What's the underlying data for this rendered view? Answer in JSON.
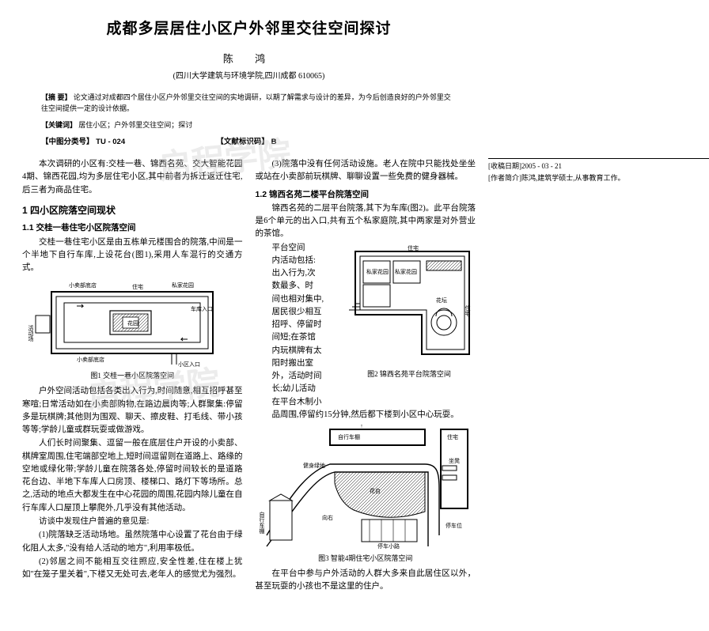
{
  "title": "成都多层居住小区户外邻里交往空间探讨",
  "author": "陈 鸿",
  "affiliation": "(四川大学建筑与环境学院,四川成都 610065)",
  "abstract_label": "【摘 要】",
  "abstract_text": "论文通过对成都四个居住小区户外邻里交往空间的实地调研，以期了解需求与设计的差异，为今后创造良好的户外邻里交往空间提供一定的设计依据。",
  "keywords_label": "【关键词】",
  "keywords_text": "居住小区；户外邻里交往空间；探讨",
  "class_label": "【中图分类号】",
  "class_value": "TU - 024",
  "doc_label": "【文献标识码】",
  "doc_value": "B",
  "intro": "本次调研的小区有:交桂一巷、锦西名苑、交大智能花园4期、锦西花园,均为多层住宅小区,其中前者为拆迁返迁住宅,后三者为商品住宅。",
  "sec1": "1 四小区院落空间现状",
  "sec11": "1.1 交桂一巷住宅小区院落空间",
  "p11a": "交桂一巷住宅小区是由五栋单元楼围合的院落,中间是一个半地下自行车库,上设花台(图1),采用人车混行的交通方式。",
  "fig1_labels": {
    "a": "小卖部底店",
    "b": "住宅",
    "c": "私家花园",
    "d": "车库入口",
    "e": "活动场",
    "f": "花园",
    "g": "小区入口",
    "h": "小卖部底店"
  },
  "cap1": "图1 交桂一巷小区院落空间",
  "p11b": "户外空间活动包括各类出入行为,时间随意,相互招呼甚至寒喧;日常活动如在小卖部购物,在路边晨肉等;人群聚集:停留多是玩棋牌;其他则为围观、聊天、擦皮鞋、打毛线、带小孩等等;学龄儿童或群玩耍或做游戏。",
  "p11c": "人们长时间聚集、逗留一般在底层住户开设的小卖部、棋牌室周围,住宅端部空地上,短时间逗留则在道路上、路缘的空地或绿化带;学龄儿童在院落各处,停留时间较长的是道路花台边、半地下车库人口房顶、楼梯口、路灯下等场所。总之,活动的地点大都发生在中心花园的周围,花园内除儿童在自行车库人口屋顶上攀爬外,几乎没有其他活动。",
  "p11d": "访谈中发现住户普遍的意见是:",
  "p11e": "(1)院落缺乏活动场地。虽然院落中心设置了花台由于绿化阻人太多,\"没有给人活动的地方\",利用率极低。",
  "p11f": "(2)邻居之间不能相互交往照应,安全性差,住在楼上犹如\"在笼子里关着\",下楼又无处可去,老年人的感觉尤为强烈。",
  "p11g": "(3)院落中没有任何活动设施。老人在院中只能找处坐坐或站在小卖部前玩棋牌、聊聊设置一些免费的健身器械。",
  "sec12": "1.2 锦西名苑二楼平台院落空间",
  "p12a": "锦西名苑的二层平台院落,其下为车库(图2)。此平台院落是6个单元的出入口,共有五个私家庭院,其中两家是对外营业的茶馆。",
  "p12b_lines": [
    "平台空间",
    "内活动包括:",
    "出入行为,次",
    "数最多、时",
    "间也相对集中,",
    "居民很少相互",
    "招呼、停留时",
    "间短;在茶馆",
    "内玩棋牌有太",
    "阳时搬出室",
    "外，活动时间",
    "长;幼儿活动",
    "在平台木制小"
  ],
  "fig2_labels": {
    "a": "私家花园",
    "b": "私家花园",
    "c": "花坛",
    "d": "住宅",
    "e": "住宅"
  },
  "cap2": "图2 锦西名苑平台院落空间",
  "p12c": "品周围,停留约15分钟,然后都下楼到小区中心玩耍。",
  "fig3_labels": {
    "a": "自行车棚",
    "b": "住宅",
    "c": "健身绿地",
    "d": "花台",
    "e": "坐凳",
    "f": "自行车棚",
    "g": "向右",
    "h": "停车小路",
    "i": "停车位"
  },
  "cap3": "图3 智能4期住宅小区院落空间",
  "p12d": "在平台中参与户外活动的人群大多来自此居住区以外，甚至玩耍的小孩也不是这里的住户。",
  "fn_date": "[收稿日期]2005 - 03 - 21",
  "fn_author": "[作者简介]陈鸿,建筑学硕士,从事教育工作。",
  "watermark": "启程学院"
}
